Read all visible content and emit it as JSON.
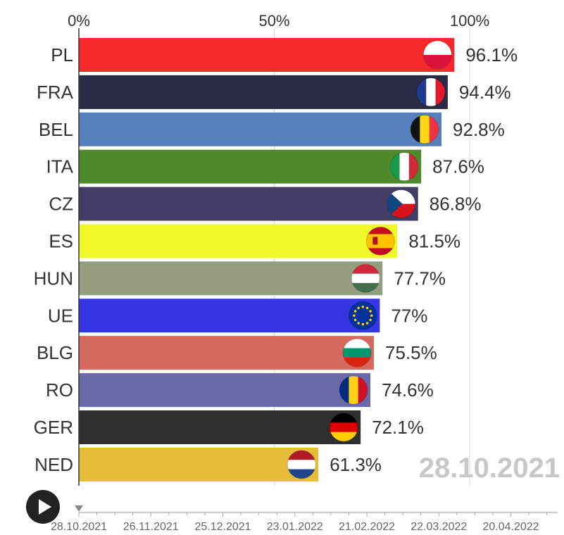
{
  "chart_data": {
    "type": "bar",
    "orientation": "horizontal",
    "title": "",
    "xlabel": "",
    "ylabel": "",
    "xlim": [
      0,
      100
    ],
    "x_ticks": [
      "0%",
      "50%",
      "100%"
    ],
    "x_tick_values": [
      0,
      50,
      100
    ],
    "grid": true,
    "categories": [
      "PL",
      "FRA",
      "BEL",
      "ITA",
      "CZ",
      "ES",
      "HUN",
      "UE",
      "BLG",
      "RO",
      "GER",
      "NED"
    ],
    "values": [
      96.1,
      94.4,
      92.8,
      87.6,
      86.8,
      81.5,
      77.7,
      77,
      75.5,
      74.6,
      72.1,
      61.3
    ],
    "value_labels": [
      "96.1%",
      "94.4%",
      "92.8%",
      "87.6%",
      "86.8%",
      "81.5%",
      "77.7%",
      "77%",
      "75.5%",
      "74.6%",
      "72.1%",
      "61.3%"
    ],
    "bar_colors": [
      "#f5282a",
      "#2a2b44",
      "#5580bc",
      "#4e8a2c",
      "#403e64",
      "#f0fa28",
      "#949e7e",
      "#3535e4",
      "#d46a5d",
      "#6a68a6",
      "#2f2f2f",
      "#e6bc38"
    ],
    "flags": [
      "flag-poland",
      "flag-france",
      "flag-belgium",
      "flag-italy",
      "flag-czechia",
      "flag-spain",
      "flag-hungary",
      "flag-eu",
      "flag-bulgaria",
      "flag-romania",
      "flag-germany",
      "flag-netherlands"
    ],
    "current_date": "28.10.2021",
    "timeline": {
      "labels": [
        "28.10.2021",
        "26.11.2021",
        "25.12.2021",
        "23.01.2022",
        "21.02.2022",
        "22.03.2022",
        "20.04.2022"
      ],
      "position": 0
    }
  },
  "controls": {
    "play_icon": "play-icon"
  }
}
